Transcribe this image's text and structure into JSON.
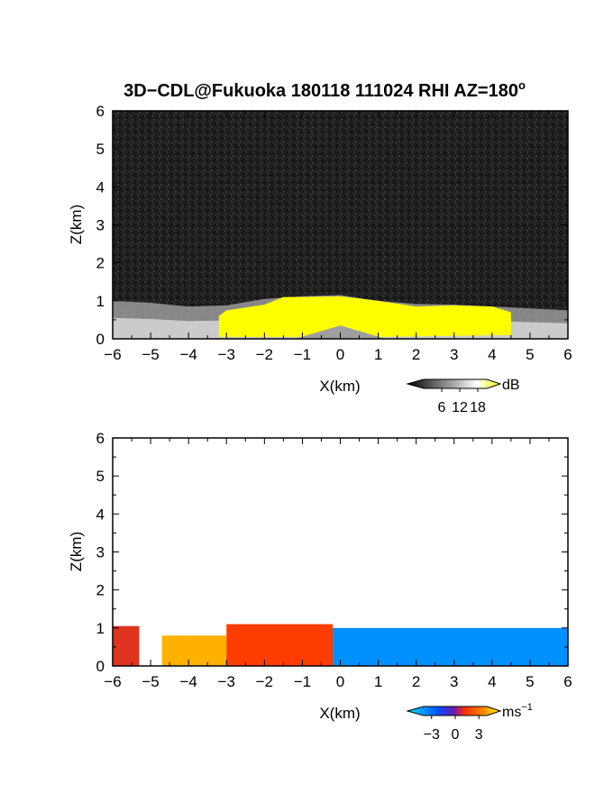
{
  "figure": {
    "title": "3D−CDL@Fukuoka 180118 111024 RHI AZ=180",
    "title_superscript": "o"
  },
  "chart_data": [
    {
      "type": "heatmap",
      "panel": "top",
      "quantity": "reflectivity",
      "xlabel": "X(km)",
      "ylabel": "Z(km)",
      "xlim": [
        -6,
        6
      ],
      "ylim": [
        0,
        6
      ],
      "xticks": [
        "−6",
        "−5",
        "−4",
        "−3",
        "−2",
        "−1",
        "0",
        "1",
        "2",
        "3",
        "4",
        "5",
        "6"
      ],
      "yticks": [
        "0",
        "1",
        "2",
        "3",
        "4",
        "5",
        "6"
      ],
      "colorbar": {
        "unit": "dB",
        "ticks": [
          "6",
          "12",
          "18"
        ],
        "range": [
          0,
          21
        ],
        "colors": [
          "#000000",
          "#ffffff",
          "#ffff00"
        ]
      },
      "background": {
        "color": "#1e1e1e",
        "noise": true
      },
      "echo_layer": {
        "top_profile": [
          [
            -6.0,
            1.0
          ],
          [
            -5.0,
            0.95
          ],
          [
            -4.0,
            0.85
          ],
          [
            -3.0,
            0.88
          ],
          [
            -2.0,
            1.05
          ],
          [
            -1.0,
            1.12
          ],
          [
            0.0,
            1.15
          ],
          [
            1.0,
            1.0
          ],
          [
            2.0,
            0.92
          ],
          [
            3.0,
            0.9
          ],
          [
            4.0,
            0.85
          ],
          [
            5.0,
            0.8
          ],
          [
            6.0,
            0.75
          ]
        ],
        "strong_top_profile": [
          [
            -3.2,
            0.6
          ],
          [
            -3.0,
            0.75
          ],
          [
            -2.0,
            0.9
          ],
          [
            -1.5,
            1.1
          ],
          [
            -1.0,
            1.1
          ],
          [
            0.0,
            1.12
          ],
          [
            1.0,
            1.0
          ],
          [
            2.0,
            0.85
          ],
          [
            3.0,
            0.88
          ],
          [
            4.0,
            0.85
          ],
          [
            4.5,
            0.7
          ]
        ],
        "strong_bottom_profile": [
          [
            -3.2,
            0.05
          ],
          [
            -2.0,
            0.05
          ],
          [
            -1.0,
            0.05
          ],
          [
            1.0,
            0.05
          ],
          [
            4.5,
            0.1
          ]
        ]
      }
    },
    {
      "type": "heatmap",
      "panel": "bottom",
      "quantity": "Doppler velocity",
      "xlabel": "X(km)",
      "ylabel": "Z(km)",
      "xlim": [
        -6,
        6
      ],
      "ylim": [
        0,
        6
      ],
      "xticks": [
        "−6",
        "−5",
        "−4",
        "−3",
        "−2",
        "−1",
        "0",
        "1",
        "2",
        "3",
        "4",
        "5",
        "6"
      ],
      "yticks": [
        "0",
        "1",
        "2",
        "3",
        "4",
        "5",
        "6"
      ],
      "colorbar": {
        "unit": "ms",
        "unit_superscript": "−1",
        "ticks": [
          "−3",
          "0",
          "3"
        ],
        "range": [
          -4,
          4
        ],
        "colors": [
          "#00e5ff",
          "#0050ff",
          "#ff3000",
          "#ffff00"
        ]
      },
      "velocity_regions": [
        {
          "x": [
            -6.0,
            -5.3
          ],
          "z_top": 1.05,
          "velocity": 1.0
        },
        {
          "x": [
            -4.7,
            -3.0
          ],
          "z_top": 0.8,
          "velocity": 3.0
        },
        {
          "x": [
            -3.0,
            -0.2
          ],
          "z_top": 1.1,
          "velocity": 1.5
        },
        {
          "x": [
            -0.2,
            6.0
          ],
          "z_top": 1.0,
          "velocity": -2.5
        }
      ]
    }
  ]
}
